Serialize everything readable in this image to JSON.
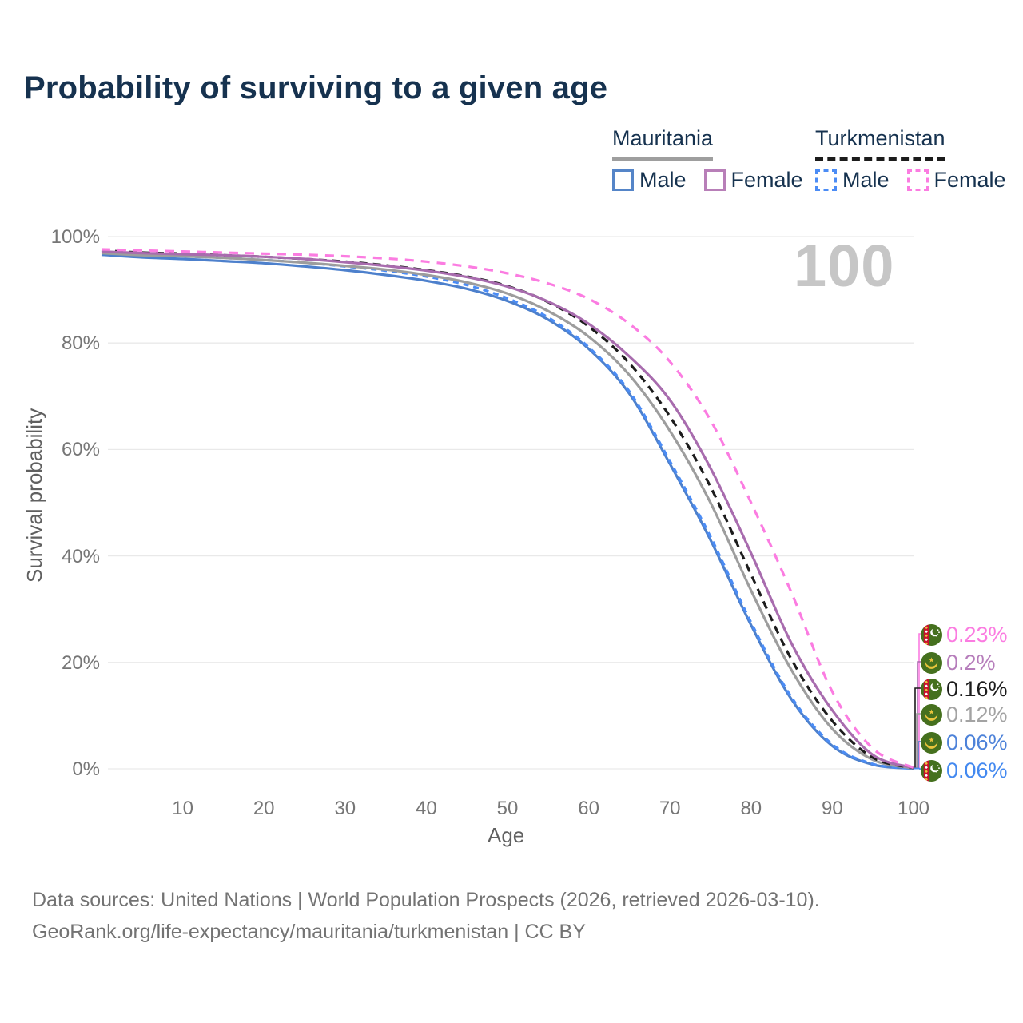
{
  "title": "Probability of surviving to a given age",
  "watermark_age": "100",
  "legend": {
    "groups": [
      {
        "country": "Mauritania",
        "line_style": "solid",
        "swatch_color": "#9e9e9e",
        "items": [
          {
            "label": "Male",
            "color": "#5585c8"
          },
          {
            "label": "Female",
            "color": "#b87fb8"
          }
        ]
      },
      {
        "country": "Turkmenistan",
        "line_style": "dashed",
        "swatch_color": "#1c1c1c",
        "items": [
          {
            "label": "Male",
            "color": "#4b8cf5"
          },
          {
            "label": "Female",
            "color": "#fb7ce1"
          }
        ]
      }
    ]
  },
  "chart_data": {
    "type": "line",
    "title": "Probability of surviving to a given age",
    "xlabel": "Age",
    "ylabel": "Survival probability",
    "xlim": [
      0,
      100
    ],
    "ylim": [
      0,
      100
    ],
    "grid": "horizontal",
    "legend_position": "top-right",
    "x_ticks": [
      10,
      20,
      30,
      40,
      50,
      60,
      70,
      80,
      90,
      100
    ],
    "y_ticks": [
      0,
      20,
      40,
      60,
      80,
      100
    ],
    "y_tick_suffix": "%",
    "x": [
      0,
      5,
      10,
      15,
      20,
      25,
      30,
      35,
      40,
      45,
      50,
      55,
      60,
      65,
      70,
      75,
      80,
      85,
      90,
      95,
      100
    ],
    "series": [
      {
        "id": "tkm-female",
        "name": "Turkmenistan Female",
        "country": "turkmenistan",
        "sex": "Female",
        "style": "dashed",
        "color": "#fb7ce1",
        "label_color": "#fb7ce1",
        "end_label": "0.23%",
        "z": 5,
        "values": [
          97.6,
          97.4,
          97.2,
          97.0,
          96.8,
          96.6,
          96.3,
          95.9,
          95.3,
          94.4,
          93.1,
          91.2,
          88.3,
          83.6,
          76.5,
          65.5,
          50.0,
          33.0,
          14.5,
          3.8,
          0.23
        ]
      },
      {
        "id": "mrt-female",
        "name": "Mauritania Female",
        "country": "mauritania",
        "sex": "Female",
        "style": "solid",
        "color": "#a86cae",
        "label_color": "#b67dbb",
        "end_label": "0.2%",
        "z": 4,
        "values": [
          97.2,
          96.9,
          96.7,
          96.5,
          96.2,
          95.8,
          95.2,
          94.5,
          93.6,
          92.4,
          90.6,
          87.8,
          83.6,
          77.5,
          69.3,
          56.5,
          40.5,
          23.5,
          11.0,
          2.6,
          0.2
        ]
      },
      {
        "id": "tkm-all",
        "name": "Turkmenistan (both sexes)",
        "country": "turkmenistan",
        "sex": "All",
        "style": "dashed",
        "color": "#1c1c1c",
        "label_color": "#1c1c1c",
        "end_label": "0.16%",
        "z": 3,
        "values": [
          97.4,
          97.0,
          96.8,
          96.5,
          96.2,
          95.8,
          95.3,
          94.6,
          93.7,
          92.5,
          90.7,
          87.7,
          83.1,
          76.2,
          66.2,
          53.0,
          36.5,
          20.5,
          9.0,
          2.1,
          0.16
        ]
      },
      {
        "id": "mrt-all",
        "name": "Mauritania (both sexes)",
        "country": "mauritania",
        "sex": "All",
        "style": "solid",
        "color": "#9d9d9d",
        "label_color": "#a3a3a3",
        "end_label": "0.12%",
        "z": 2,
        "values": [
          96.9,
          96.5,
          96.3,
          96.0,
          95.6,
          95.1,
          94.5,
          93.8,
          92.8,
          91.4,
          89.3,
          86.0,
          81.2,
          74.0,
          63.5,
          50.0,
          33.5,
          18.5,
          7.5,
          1.7,
          0.12
        ]
      },
      {
        "id": "mrt-male",
        "name": "Mauritania Male",
        "country": "mauritania",
        "sex": "Male",
        "style": "solid",
        "color": "#4d80cc",
        "label_color": "#4d82d9",
        "end_label": "0.06%",
        "z": 0,
        "values": [
          96.6,
          96.1,
          95.8,
          95.4,
          95.0,
          94.4,
          93.7,
          92.8,
          91.7,
          90.2,
          87.9,
          84.4,
          78.9,
          70.5,
          57.3,
          43.0,
          27.0,
          13.0,
          4.3,
          0.8,
          0.06
        ]
      },
      {
        "id": "tkm-male",
        "name": "Turkmenistan Male",
        "country": "turkmenistan",
        "sex": "Male",
        "style": "dashed",
        "color": "#4b8cf5",
        "label_color": "#4389f0",
        "end_label": "0.06%",
        "z": 1,
        "values": [
          97.1,
          96.6,
          96.3,
          96.0,
          95.6,
          95.1,
          94.4,
          93.6,
          92.5,
          90.9,
          88.4,
          84.8,
          79.2,
          70.9,
          57.8,
          43.6,
          27.5,
          13.4,
          4.6,
          0.9,
          0.06
        ]
      }
    ]
  },
  "flag_colors": {
    "green": "#45701e",
    "red": "#c8122e",
    "gold": "#e9c43c",
    "white": "#ffffff"
  },
  "footer": {
    "line1": "Data sources: United Nations | World Population Prospects (2026, retrieved 2026-03-10).",
    "line2": "GeoRank.org/life-expectancy/mauritania/turkmenistan | CC BY"
  }
}
